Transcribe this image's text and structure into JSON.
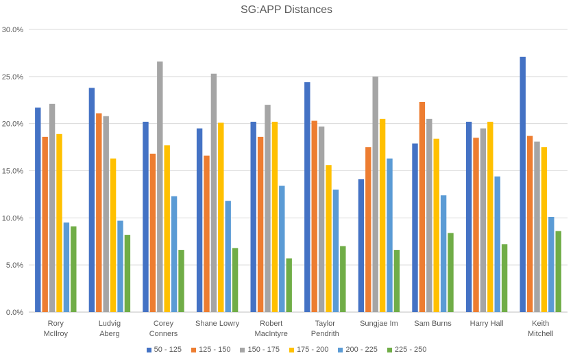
{
  "chart_data": {
    "type": "bar",
    "title": "SG:APP Distances",
    "categories": [
      "Rory McIlroy",
      "Ludvig Aberg",
      "Corey Conners",
      "Shane Lowry",
      "Robert MacIntyre",
      "Taylor Pendrith",
      "Sungjae Im",
      "Sam Burns",
      "Harry Hall",
      "Keith Mitchell"
    ],
    "series": [
      {
        "name": "50 - 125",
        "color": "#4472C4",
        "values": [
          21.7,
          23.8,
          20.2,
          19.5,
          20.2,
          24.4,
          14.1,
          17.9,
          20.2,
          27.1
        ]
      },
      {
        "name": "125 - 150",
        "color": "#ED7D31",
        "values": [
          18.6,
          21.1,
          16.8,
          16.6,
          18.6,
          20.3,
          17.5,
          22.3,
          18.5,
          18.7
        ]
      },
      {
        "name": "150 - 175",
        "color": "#A5A5A5",
        "values": [
          22.1,
          20.8,
          26.6,
          25.3,
          22.0,
          19.7,
          25.0,
          20.5,
          19.5,
          18.1
        ]
      },
      {
        "name": "175 - 200",
        "color": "#FFC000",
        "values": [
          18.9,
          16.3,
          17.7,
          20.1,
          20.2,
          15.6,
          20.5,
          18.4,
          20.2,
          17.5
        ]
      },
      {
        "name": "200 - 225",
        "color": "#5B9BD5",
        "values": [
          9.5,
          9.7,
          12.3,
          11.8,
          13.4,
          13.0,
          16.3,
          12.4,
          14.4,
          10.1
        ]
      },
      {
        "name": "225 - 250",
        "color": "#70AD47",
        "values": [
          9.1,
          8.2,
          6.6,
          6.8,
          5.7,
          7.0,
          6.6,
          8.4,
          7.2,
          8.6
        ]
      }
    ],
    "ylim": [
      0,
      30
    ],
    "yticks": [
      "0.0%",
      "5.0%",
      "10.0%",
      "15.0%",
      "20.0%",
      "25.0%",
      "30.0%"
    ],
    "grid": true,
    "legend": "bottom"
  }
}
